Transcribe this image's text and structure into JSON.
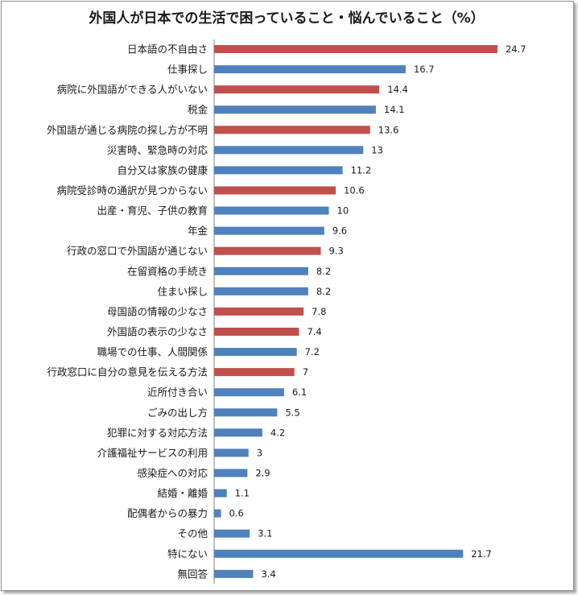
{
  "chart_data": {
    "type": "bar",
    "orientation": "horizontal",
    "title": "外国人が日本での生活で困っていること・悩んでいること（%）",
    "categories": [
      "日本語の不自由さ",
      "仕事探し",
      "病院に外国語ができる人がいない",
      "税金",
      "外国語が通じる病院の探し方が不明",
      "災害時、緊急時の対応",
      "自分又は家族の健康",
      "病院受診時の通訳が見つからない",
      "出産・育児、子供の教育",
      "年金",
      "行政の窓口で外国語が通じない",
      "在留資格の手続き",
      "住まい探し",
      "母国語の情報の少なさ",
      "外国語の表示の少なさ",
      "職場での仕事、人間関係",
      "行政窓口に自分の意見を伝える方法",
      "近所付き合い",
      "ごみの出し方",
      "犯罪に対する対応方法",
      "介護福祉サービスの利用",
      "感染症への対応",
      "結婚・離婚",
      "配偶者からの暴力",
      "その他",
      "特にない",
      "無回答"
    ],
    "values": [
      24.7,
      16.7,
      14.4,
      14.1,
      13.6,
      13,
      11.2,
      10.6,
      10,
      9.6,
      9.3,
      8.2,
      8.2,
      7.8,
      7.4,
      7.2,
      7,
      6.1,
      5.5,
      4.2,
      3,
      2.9,
      1.1,
      0.6,
      3.1,
      21.7,
      3.4
    ],
    "value_labels": [
      "24.7",
      "16.7",
      "14.4",
      "14.1",
      "13.6",
      "13",
      "11.2",
      "10.6",
      "10",
      "9.6",
      "9.3",
      "8.2",
      "8.2",
      "7.8",
      "7.4",
      "7.2",
      "7",
      "6.1",
      "5.5",
      "4.2",
      "3",
      "2.9",
      "1.1",
      "0.6",
      "3.1",
      "21.7",
      "3.4"
    ],
    "highlighted": [
      true,
      false,
      true,
      false,
      true,
      false,
      false,
      true,
      false,
      false,
      true,
      false,
      false,
      true,
      true,
      false,
      true,
      false,
      false,
      false,
      false,
      false,
      false,
      false,
      false,
      false,
      false
    ],
    "xlim": [
      0,
      25
    ],
    "grid": false,
    "legend": "none",
    "colors": {
      "highlight": "#c0504d",
      "default": "#4f81bd",
      "axis": "#808080"
    }
  }
}
